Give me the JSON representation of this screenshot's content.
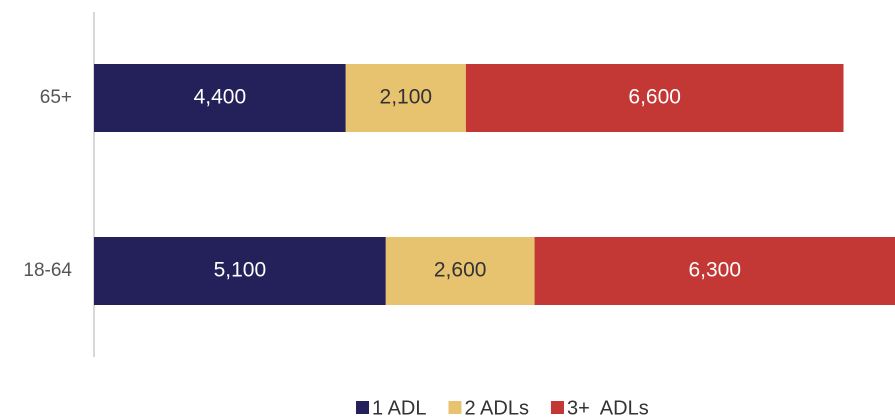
{
  "chart_data": {
    "type": "bar",
    "orientation": "horizontal",
    "stacked": true,
    "categories": [
      "65+",
      "18-64"
    ],
    "series": [
      {
        "name": "1 ADL",
        "color": "#24205a",
        "values": [
          4400,
          5100
        ],
        "value_labels": [
          "4,400",
          "5,100"
        ]
      },
      {
        "name": "2 ADLs",
        "color": "#e8c36f",
        "values": [
          2100,
          2600
        ],
        "value_labels": [
          "2,100",
          "2,600"
        ]
      },
      {
        "name": "3+  ADLs",
        "color": "#c33734",
        "values": [
          6600,
          6300
        ],
        "value_labels": [
          "6,600",
          "6,300"
        ]
      }
    ],
    "xlim": [
      0,
      14000
    ]
  }
}
